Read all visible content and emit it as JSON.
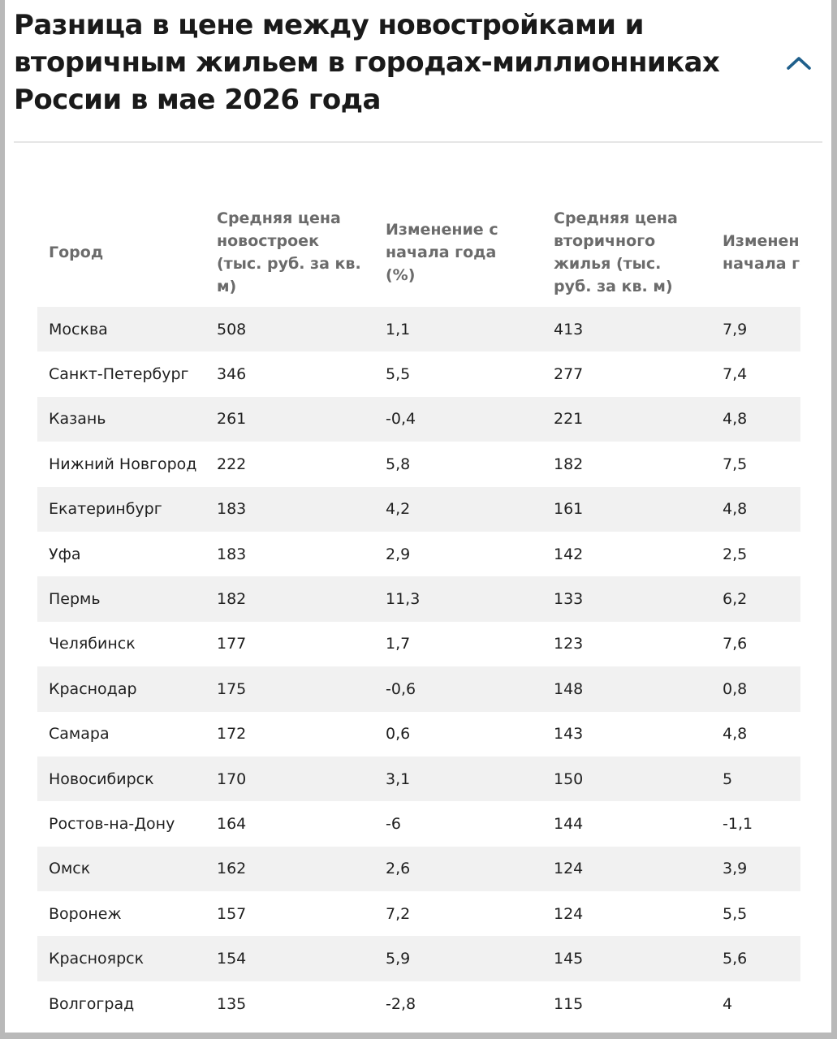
{
  "header": {
    "title": "Разница в цене между новостройками и вторичным жильем в городах-миллионниках России в мае 2026 года"
  },
  "colors": {
    "accent": "#1f5f8b",
    "row_stripe": "#f1f1f1",
    "header_text": "#6b6b6b"
  },
  "table": {
    "columns": [
      "Город",
      "Средняя цена новостроек (тыс. руб. за кв. м)",
      "Изменение с начала года (%)",
      "Средняя цена вторичного жилья (тыс. руб. за кв. м)",
      "Изменение с начала года (%)"
    ],
    "rows": [
      [
        "Москва",
        "508",
        "1,1",
        "413",
        "7,9"
      ],
      [
        "Санкт-Петербург",
        "346",
        "5,5",
        "277",
        "7,4"
      ],
      [
        "Казань",
        "261",
        "-0,4",
        "221",
        "4,8"
      ],
      [
        "Нижний Новгород",
        "222",
        "5,8",
        "182",
        "7,5"
      ],
      [
        "Екатеринбург",
        "183",
        "4,2",
        "161",
        "4,8"
      ],
      [
        "Уфа",
        "183",
        "2,9",
        "142",
        "2,5"
      ],
      [
        "Пермь",
        "182",
        "11,3",
        "133",
        "6,2"
      ],
      [
        "Челябинск",
        "177",
        "1,7",
        "123",
        "7,6"
      ],
      [
        "Краснодар",
        "175",
        "-0,6",
        "148",
        "0,8"
      ],
      [
        "Самара",
        "172",
        "0,6",
        "143",
        "4,8"
      ],
      [
        "Новосибирск",
        "170",
        "3,1",
        "150",
        "5"
      ],
      [
        "Ростов-на-Дону",
        "164",
        "-6",
        "144",
        "-1,1"
      ],
      [
        "Омск",
        "162",
        "2,6",
        "124",
        "3,9"
      ],
      [
        "Воронеж",
        "157",
        "7,2",
        "124",
        "5,5"
      ],
      [
        "Красноярск",
        "154",
        "5,9",
        "145",
        "5,6"
      ],
      [
        "Волгоград",
        "135",
        "-2,8",
        "115",
        "4"
      ]
    ]
  }
}
